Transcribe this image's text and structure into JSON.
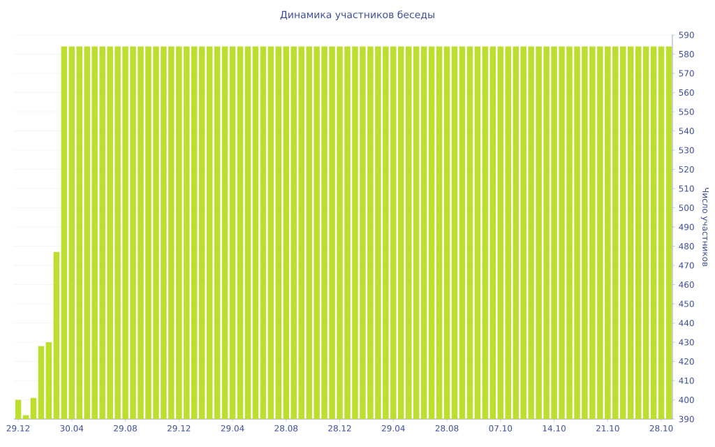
{
  "chart_data": {
    "type": "bar",
    "title": "Динамика участников беседы",
    "ylabel": "Число участников",
    "categories": [
      "29.12",
      null,
      null,
      null,
      null,
      null,
      null,
      "30.04",
      null,
      null,
      null,
      null,
      null,
      null,
      "29.08",
      null,
      null,
      null,
      null,
      null,
      null,
      "29.12",
      null,
      null,
      null,
      null,
      null,
      null,
      "29.04",
      null,
      null,
      null,
      null,
      null,
      null,
      "28.08",
      null,
      null,
      null,
      null,
      null,
      null,
      "28.12",
      null,
      null,
      null,
      null,
      null,
      null,
      "29.04",
      null,
      null,
      null,
      null,
      null,
      null,
      "28.08",
      null,
      null,
      null,
      null,
      null,
      null,
      "07.10",
      null,
      null,
      null,
      null,
      null,
      null,
      "14.10",
      null,
      null,
      null,
      null,
      null,
      null,
      "21.10",
      null,
      null,
      null,
      null,
      null,
      null,
      "28.10",
      null
    ],
    "values": [
      400,
      392,
      401,
      428,
      430,
      477,
      584,
      584,
      584,
      584,
      584,
      584,
      584,
      584,
      584,
      584,
      584,
      584,
      584,
      584,
      584,
      584,
      584,
      584,
      584,
      584,
      584,
      584,
      584,
      584,
      584,
      584,
      584,
      584,
      584,
      584,
      584,
      584,
      584,
      584,
      584,
      584,
      584,
      584,
      584,
      584,
      584,
      584,
      584,
      584,
      584,
      584,
      584,
      584,
      584,
      584,
      584,
      584,
      584,
      584,
      584,
      584,
      584,
      584,
      584,
      584,
      584,
      584,
      584,
      584,
      584,
      584,
      584,
      584,
      584,
      584,
      584,
      584,
      584,
      584,
      584,
      584,
      584,
      584,
      584,
      584
    ],
    "color": "#bede2f",
    "ylim": [
      390,
      590
    ],
    "yticks": [
      390,
      400,
      410,
      420,
      430,
      440,
      450,
      460,
      470,
      480,
      490,
      500,
      510,
      520,
      530,
      540,
      550,
      560,
      570,
      580,
      590
    ],
    "grid": "y"
  }
}
